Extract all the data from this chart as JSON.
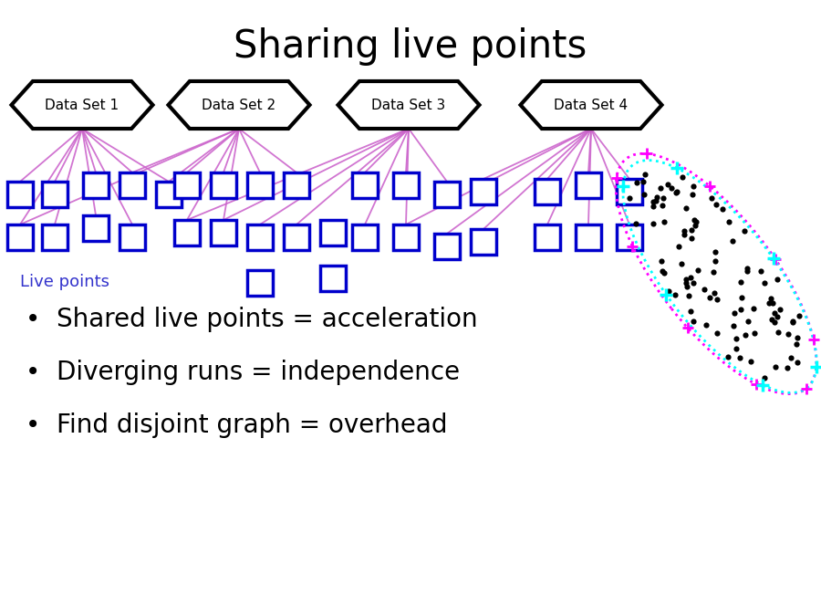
{
  "title": "Sharing live points",
  "title_fontsize": 30,
  "background_color": "#ffffff",
  "bullet_points": [
    "Shared live points = acceleration",
    "Diverging runs = independence",
    "Find disjoint graph = overhead"
  ],
  "bullet_fontsize": 20,
  "live_points_label": "Live points",
  "live_points_color": "#3333cc",
  "dataset_labels": [
    "Data Set 1",
    "Data Set 2",
    "Data Set 3",
    "Data Set 4"
  ],
  "dataset_box_color": "#000000",
  "dataset_box_facecolor": "#ffffff",
  "live_box_color": "#0000cc",
  "live_box_facecolor": "#ffffff",
  "line_color": "#cc66cc",
  "ellipse_color_magenta": "#ff00ff",
  "ellipse_color_cyan": "#00ffff",
  "dot_color": "#000000",
  "fig_width": 9.0,
  "fig_height": 6.75,
  "dpi": 100
}
